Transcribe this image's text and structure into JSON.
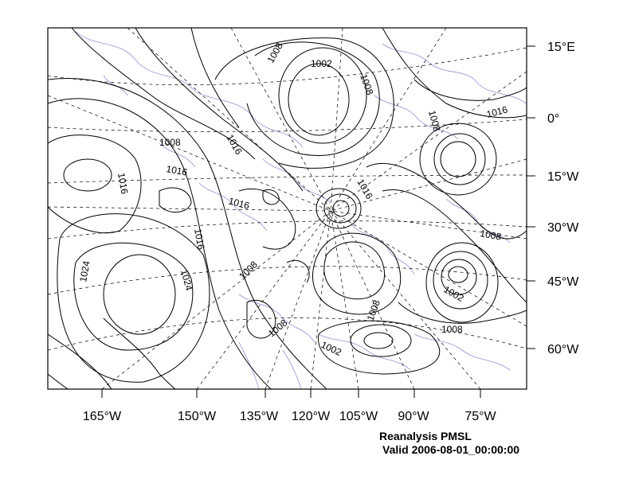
{
  "map": {
    "right_axis_labels": [
      "15°E",
      "0°",
      "15°W",
      "30°W",
      "45°W",
      "60°W"
    ],
    "bottom_axis_labels": [
      "165°W",
      "150°W",
      "135°W",
      "120°W",
      "105°W",
      "90°W",
      "75°W"
    ],
    "contour_labels": [
      "1008",
      "1002",
      "1008",
      "1016",
      "1008",
      "1008",
      "1016",
      "1016",
      "1016",
      "1016",
      "1016",
      "1024",
      "1016",
      "1024",
      "1008",
      "1008",
      "1008",
      "1002",
      "1008",
      "1002",
      "1008"
    ],
    "colors": {
      "contour": "#000000",
      "coastline": "#9a8fd0",
      "graticule": "#000000",
      "frame": "#000000"
    }
  },
  "caption": {
    "title": "Reanalysis PMSL",
    "valid": "Valid 2006-08-01_00:00:00"
  }
}
